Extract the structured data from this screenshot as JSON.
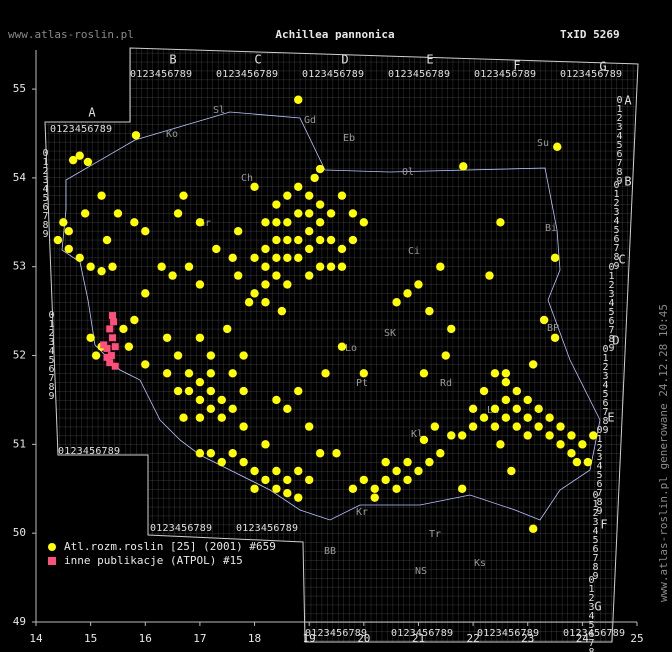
{
  "header": {
    "site": "www.atlas-roslin.pl",
    "title": "Achillea pannonica",
    "taxon_id": "TxID 5269",
    "side_note": "www.atlas-roslin.pl generowane 24.12.28 10:45"
  },
  "grid_labels": {
    "letters": [
      "A",
      "B",
      "C",
      "D",
      "E",
      "F",
      "G"
    ],
    "digits": "0123456789"
  },
  "regions": [
    "Gd",
    "Eb",
    "Ol",
    "Sl",
    "Ko",
    "Ch",
    "Su",
    "Bi",
    "Ci",
    "SK",
    "Lo",
    "Pt",
    "Rd",
    "Lu",
    "Kl",
    "BB",
    "NS",
    "Kr",
    "Tr",
    "Ks",
    "BP",
    "Gr"
  ],
  "map": {
    "xlim": [
      14,
      25
    ],
    "ylim": [
      49,
      55.44
    ],
    "xticks": [
      14,
      15,
      16,
      17,
      18,
      19,
      20,
      21,
      22,
      23,
      24,
      25
    ],
    "yticks": [
      49,
      50,
      51,
      52,
      53,
      54,
      55
    ],
    "series": [
      {
        "name": "Atl.rozm.roslin [25] (2001) #659",
        "color": "#ffff00",
        "points": [
          [
            18.8,
            54.88
          ],
          [
            15.83,
            54.48
          ],
          [
            21.82,
            54.13
          ],
          [
            23.54,
            54.35
          ],
          [
            14.68,
            54.2
          ],
          [
            14.8,
            54.25
          ],
          [
            14.95,
            54.18
          ],
          [
            19.1,
            54.0
          ],
          [
            19.2,
            54.1
          ],
          [
            19.0,
            53.8
          ],
          [
            18.8,
            53.9
          ],
          [
            18.6,
            53.8
          ],
          [
            18.4,
            53.7
          ],
          [
            18.2,
            53.5
          ],
          [
            18.4,
            53.5
          ],
          [
            18.6,
            53.5
          ],
          [
            18.8,
            53.6
          ],
          [
            19.0,
            53.6
          ],
          [
            19.2,
            53.7
          ],
          [
            19.4,
            53.6
          ],
          [
            19.2,
            53.5
          ],
          [
            19.0,
            53.4
          ],
          [
            18.8,
            53.3
          ],
          [
            18.6,
            53.3
          ],
          [
            18.4,
            53.3
          ],
          [
            18.2,
            53.2
          ],
          [
            18.0,
            53.1
          ],
          [
            18.2,
            53.0
          ],
          [
            18.4,
            53.1
          ],
          [
            18.6,
            53.1
          ],
          [
            18.8,
            53.1
          ],
          [
            19.0,
            53.2
          ],
          [
            19.2,
            53.3
          ],
          [
            19.4,
            53.3
          ],
          [
            19.6,
            53.2
          ],
          [
            19.8,
            53.3
          ],
          [
            19.4,
            53.0
          ],
          [
            19.6,
            53.0
          ],
          [
            19.2,
            53.0
          ],
          [
            19.0,
            52.9
          ],
          [
            18.2,
            52.8
          ],
          [
            18.0,
            52.7
          ],
          [
            18.4,
            52.9
          ],
          [
            18.6,
            52.8
          ],
          [
            17.9,
            52.6
          ],
          [
            18.2,
            52.6
          ],
          [
            18.5,
            52.5
          ],
          [
            17.7,
            52.9
          ],
          [
            17.6,
            53.1
          ],
          [
            19.8,
            53.6
          ],
          [
            20.0,
            53.5
          ],
          [
            19.6,
            53.8
          ],
          [
            18.0,
            53.9
          ],
          [
            17.7,
            53.4
          ],
          [
            14.4,
            53.3
          ],
          [
            14.5,
            53.5
          ],
          [
            14.6,
            53.4
          ],
          [
            14.8,
            53.1
          ],
          [
            15.0,
            53.0
          ],
          [
            15.2,
            52.95
          ],
          [
            15.4,
            53.0
          ],
          [
            14.9,
            53.6
          ],
          [
            15.5,
            53.6
          ],
          [
            15.8,
            53.5
          ],
          [
            15.2,
            53.8
          ],
          [
            14.6,
            53.2
          ],
          [
            15.3,
            53.3
          ],
          [
            16.0,
            53.4
          ],
          [
            16.6,
            53.6
          ],
          [
            16.7,
            53.8
          ],
          [
            17.0,
            53.5
          ],
          [
            16.3,
            53.0
          ],
          [
            16.5,
            52.9
          ],
          [
            16.8,
            53.0
          ],
          [
            17.3,
            53.2
          ],
          [
            16.0,
            52.7
          ],
          [
            17.0,
            52.8
          ],
          [
            15.0,
            52.2
          ],
          [
            15.2,
            52.1
          ],
          [
            15.6,
            52.3
          ],
          [
            15.8,
            52.4
          ],
          [
            15.1,
            52.0
          ],
          [
            15.7,
            52.1
          ],
          [
            16.0,
            51.9
          ],
          [
            16.4,
            52.2
          ],
          [
            16.6,
            52.0
          ],
          [
            16.8,
            51.8
          ],
          [
            17.0,
            51.7
          ],
          [
            16.8,
            51.6
          ],
          [
            17.0,
            51.5
          ],
          [
            17.2,
            51.6
          ],
          [
            17.4,
            51.5
          ],
          [
            17.2,
            51.4
          ],
          [
            17.0,
            51.3
          ],
          [
            17.4,
            51.3
          ],
          [
            17.6,
            51.4
          ],
          [
            17.8,
            51.6
          ],
          [
            16.6,
            51.6
          ],
          [
            16.4,
            51.8
          ],
          [
            17.2,
            51.8
          ],
          [
            17.0,
            52.2
          ],
          [
            17.2,
            52.0
          ],
          [
            17.5,
            52.3
          ],
          [
            17.8,
            52.0
          ],
          [
            17.6,
            51.8
          ],
          [
            16.7,
            51.3
          ],
          [
            17.8,
            51.2
          ],
          [
            17.6,
            50.9
          ],
          [
            17.8,
            50.8
          ],
          [
            18.0,
            50.7
          ],
          [
            18.2,
            50.6
          ],
          [
            18.4,
            50.7
          ],
          [
            18.6,
            50.6
          ],
          [
            18.8,
            50.7
          ],
          [
            18.6,
            50.45
          ],
          [
            18.4,
            50.5
          ],
          [
            18.0,
            50.5
          ],
          [
            17.4,
            50.8
          ],
          [
            17.2,
            50.9
          ],
          [
            17.0,
            50.9
          ],
          [
            19.0,
            50.6
          ],
          [
            18.8,
            50.4
          ],
          [
            18.2,
            51.0
          ],
          [
            19.2,
            50.9
          ],
          [
            19.5,
            50.9
          ],
          [
            20.0,
            50.6
          ],
          [
            20.2,
            50.5
          ],
          [
            20.4,
            50.6
          ],
          [
            20.6,
            50.5
          ],
          [
            20.8,
            50.6
          ],
          [
            20.6,
            50.7
          ],
          [
            20.4,
            50.8
          ],
          [
            20.8,
            50.8
          ],
          [
            21.0,
            50.7
          ],
          [
            21.2,
            50.8
          ],
          [
            21.4,
            50.9
          ],
          [
            20.2,
            50.4
          ],
          [
            19.8,
            50.5
          ],
          [
            18.4,
            51.5
          ],
          [
            18.6,
            51.4
          ],
          [
            18.8,
            51.6
          ],
          [
            19.0,
            51.2
          ],
          [
            21.8,
            50.5
          ],
          [
            23.1,
            50.05
          ],
          [
            22.7,
            50.7
          ],
          [
            20.6,
            52.6
          ],
          [
            21.6,
            52.3
          ],
          [
            21.2,
            52.5
          ],
          [
            21.0,
            52.8
          ],
          [
            21.4,
            53.0
          ],
          [
            22.3,
            52.9
          ],
          [
            23.3,
            52.4
          ],
          [
            23.5,
            52.2
          ],
          [
            22.5,
            53.5
          ],
          [
            23.5,
            53.1
          ],
          [
            23.1,
            51.9
          ],
          [
            20.8,
            52.7
          ],
          [
            20.0,
            51.8
          ],
          [
            19.6,
            52.1
          ],
          [
            19.3,
            51.8
          ],
          [
            21.1,
            51.8
          ],
          [
            21.5,
            52.0
          ],
          [
            22.6,
            51.8
          ],
          [
            22.0,
            51.4
          ],
          [
            22.2,
            51.6
          ],
          [
            22.4,
            51.8
          ],
          [
            22.6,
            51.7
          ],
          [
            22.8,
            51.6
          ],
          [
            23.0,
            51.5
          ],
          [
            23.2,
            51.4
          ],
          [
            23.4,
            51.3
          ],
          [
            23.6,
            51.2
          ],
          [
            23.8,
            51.1
          ],
          [
            24.0,
            51.0
          ],
          [
            24.2,
            51.1
          ],
          [
            23.8,
            50.9
          ],
          [
            23.6,
            51.0
          ],
          [
            23.4,
            51.1
          ],
          [
            23.2,
            51.2
          ],
          [
            23.0,
            51.3
          ],
          [
            22.8,
            51.4
          ],
          [
            22.6,
            51.5
          ],
          [
            22.4,
            51.4
          ],
          [
            22.2,
            51.3
          ],
          [
            22.0,
            51.2
          ],
          [
            21.8,
            51.1
          ],
          [
            22.4,
            51.2
          ],
          [
            22.6,
            51.3
          ],
          [
            22.8,
            51.2
          ],
          [
            23.0,
            51.1
          ],
          [
            22.5,
            51.0
          ],
          [
            23.9,
            50.8
          ],
          [
            24.1,
            50.8
          ],
          [
            21.6,
            51.1
          ],
          [
            21.3,
            51.2
          ],
          [
            21.1,
            51.05
          ]
        ]
      },
      {
        "name": "inne publikacje (ATPOL) #15",
        "color": "#ff4f7b",
        "points": [
          [
            15.24,
            52.12
          ],
          [
            15.3,
            52.08
          ],
          [
            15.35,
            52.3
          ],
          [
            15.4,
            52.2
          ],
          [
            15.42,
            52.38
          ],
          [
            15.45,
            52.1
          ],
          [
            15.38,
            52.0
          ],
          [
            15.3,
            51.98
          ],
          [
            15.45,
            51.88
          ],
          [
            15.35,
            51.92
          ],
          [
            15.4,
            52.45
          ]
        ]
      }
    ]
  }
}
